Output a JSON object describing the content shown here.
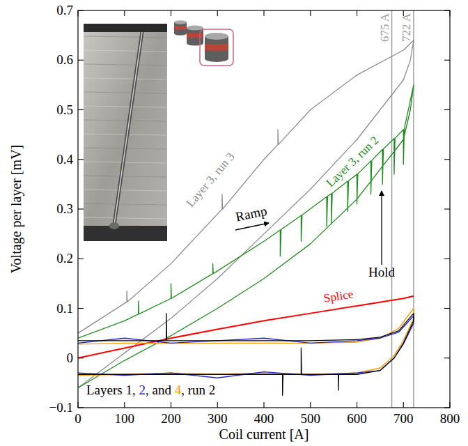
{
  "chart_data": {
    "type": "line",
    "x_label": "Coil current [A]",
    "y_label": "Voltage per layer [mV]",
    "xlim": [
      0,
      800
    ],
    "ylim": [
      -0.1,
      0.7
    ],
    "xticks": [
      0,
      100,
      200,
      300,
      400,
      500,
      600,
      700,
      800
    ],
    "yticks": [
      {
        "value": -0.1,
        "label": "−0.1"
      },
      0,
      0.1,
      0.2,
      0.3,
      0.4,
      0.5,
      0.6,
      0.7
    ],
    "grid": false,
    "series": [
      {
        "name": "Layer 3, run 3",
        "color": "#8c8c8c",
        "x": [
          0,
          100,
          105,
          105,
          106,
          200,
          300,
          310,
          310,
          311,
          400,
          430,
          430,
          431,
          500,
          600,
          700,
          722,
          715,
          700,
          600,
          500,
          400,
          300,
          200,
          100,
          0
        ],
        "values": [
          0.05,
          0.11,
          0.113,
          0.135,
          0.113,
          0.19,
          0.29,
          0.3,
          0.33,
          0.3,
          0.4,
          0.43,
          0.46,
          0.43,
          0.5,
          0.57,
          0.62,
          0.64,
          0.6,
          0.56,
          0.44,
          0.34,
          0.25,
          0.16,
          0.08,
          0.01,
          -0.06
        ]
      },
      {
        "name": "Layer 3, run 2",
        "color": "#1e8c1e",
        "x": [
          0,
          100,
          130,
          130,
          131,
          200,
          200,
          201,
          290,
          290,
          291,
          400,
          435,
          435,
          437,
          480,
          480,
          482,
          535,
          535,
          537,
          545,
          545,
          547,
          580,
          580,
          582,
          600,
          600,
          602,
          630,
          630,
          632,
          655,
          655,
          657,
          680,
          680,
          682,
          700,
          700,
          702,
          722,
          715,
          700,
          600,
          500,
          400,
          300,
          200,
          100,
          0
        ],
        "values": [
          0.04,
          0.075,
          0.0885,
          0.115,
          0.0885,
          0.12,
          0.15,
          0.12,
          0.17,
          0.19,
          0.17,
          0.235,
          0.258,
          0.205,
          0.259,
          0.287,
          0.235,
          0.288,
          0.325,
          0.265,
          0.326,
          0.331,
          0.27,
          0.332,
          0.356,
          0.295,
          0.357,
          0.37,
          0.31,
          0.371,
          0.397,
          0.33,
          0.398,
          0.42,
          0.35,
          0.421,
          0.442,
          0.37,
          0.443,
          0.46,
          0.39,
          0.462,
          0.55,
          0.5,
          0.44,
          0.32,
          0.23,
          0.16,
          0.1,
          0.045,
          -0.005,
          -0.06
        ]
      },
      {
        "name": "Splice",
        "color": "#ff0000",
        "x": [
          0,
          100,
          200,
          300,
          400,
          500,
          600,
          700,
          722
        ],
        "values": [
          0,
          0.02,
          0.04,
          0.058,
          0.075,
          0.09,
          0.105,
          0.12,
          0.125
        ]
      },
      {
        "color": "#ff9900",
        "x": [
          0,
          100,
          200,
          300,
          400,
          500,
          600,
          650,
          690,
          722,
          722,
          700,
          680,
          650,
          600,
          500,
          400,
          300,
          200,
          100,
          0
        ],
        "values": [
          0.028,
          0.03,
          0.03,
          0.03,
          0.03,
          0.03,
          0.032,
          0.04,
          0.06,
          0.1,
          0.08,
          0.035,
          0.005,
          -0.02,
          -0.03,
          -0.033,
          -0.03,
          -0.033,
          -0.03,
          -0.033,
          -0.035
        ]
      },
      {
        "color": "#2222cc",
        "x": [
          0,
          100,
          200,
          300,
          400,
          500,
          600,
          650,
          690,
          722,
          722,
          700,
          680,
          650,
          600,
          500,
          400,
          300,
          200,
          100,
          0
        ],
        "values": [
          0.03,
          0.04,
          0.03,
          0.035,
          0.04,
          0.03,
          0.035,
          0.04,
          0.052,
          0.085,
          0.07,
          0.028,
          0,
          -0.025,
          -0.03,
          -0.035,
          -0.028,
          -0.04,
          -0.03,
          -0.035,
          -0.03
        ]
      },
      {
        "color": "#000000",
        "x": [
          0,
          100,
          190,
          190,
          191,
          300,
          400,
          500,
          600,
          650,
          690,
          722,
          722,
          700,
          680,
          650,
          600,
          560,
          560,
          561,
          500,
          480,
          480,
          481,
          440,
          440,
          441,
          300,
          200,
          100,
          0
        ],
        "values": [
          0.035,
          0.035,
          0.035,
          0.09,
          0.035,
          0.035,
          0.035,
          0.035,
          0.037,
          0.042,
          0.055,
          0.09,
          0.075,
          0.03,
          0,
          -0.025,
          -0.033,
          -0.033,
          -0.065,
          -0.033,
          -0.033,
          -0.033,
          0.02,
          -0.033,
          -0.033,
          -0.075,
          -0.033,
          -0.033,
          -0.033,
          -0.033,
          -0.033
        ]
      }
    ],
    "vlines": [
      {
        "x": 675,
        "label": "675 A",
        "color": "#9a9a9a"
      },
      {
        "x": 722,
        "label": "722 A",
        "color": "#9a9a9a"
      }
    ],
    "annotations": [
      {
        "text": "Ramp"
      },
      {
        "text": "Hold"
      },
      {
        "parts": [
          {
            "text": "Layers 1, ",
            "color": "#000000"
          },
          {
            "text": "2",
            "color": "#2222cc"
          },
          {
            "text": ", and ",
            "color": "#000000"
          },
          {
            "text": "4",
            "color": "#ff9900"
          },
          {
            "text": ", run 2",
            "color": "#000000"
          }
        ]
      }
    ]
  }
}
